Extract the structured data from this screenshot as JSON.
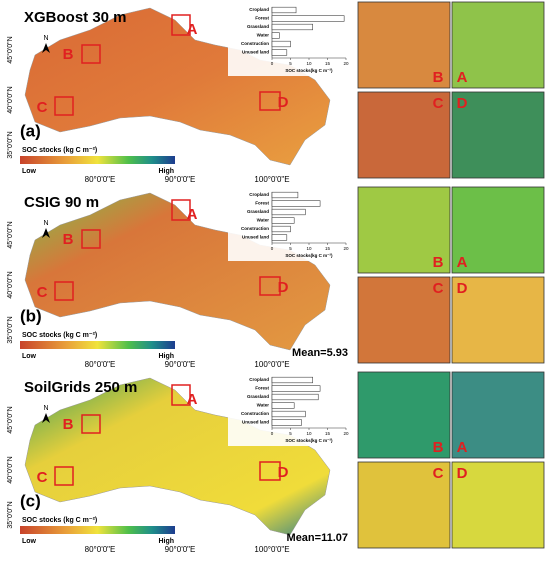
{
  "panels": [
    {
      "title": "XGBoost 30 m",
      "label": "(a)",
      "inset_values": [
        6.5,
        19.5,
        11,
        2,
        5,
        4
      ]
    },
    {
      "title": "CSIG 90 m",
      "label": "(b)",
      "mean": "Mean=5.93",
      "inset_values": [
        7,
        13,
        9,
        6,
        5,
        4
      ]
    },
    {
      "title": "SoilGrids 250 m",
      "label": "(c)",
      "mean": "Mean=11.07",
      "inset_values": [
        11,
        13,
        12.5,
        6,
        9,
        8
      ]
    }
  ],
  "inset_categories": [
    "Cropland",
    "Forest",
    "Grassland",
    "Water",
    "Construction",
    "Unused land"
  ],
  "inset_xlabel": "SOC stocks(kg C m⁻²)",
  "inset_xlim": [
    0,
    20
  ],
  "inset_xticks": [
    0,
    5,
    10,
    15,
    20
  ],
  "colorbar": {
    "title": "SOC stocks (kg C m⁻²)",
    "low": "Low",
    "high": "High"
  },
  "north": "N",
  "lat_labels": [
    "45°0'0\"N",
    "40°0'0\"N",
    "35°0'0\"N"
  ],
  "lon_labels": [
    "80°0'0\"E",
    "90°0'0\"E",
    "100°0'0\"E"
  ],
  "zoom_letters": [
    "A",
    "B",
    "C",
    "D"
  ]
}
